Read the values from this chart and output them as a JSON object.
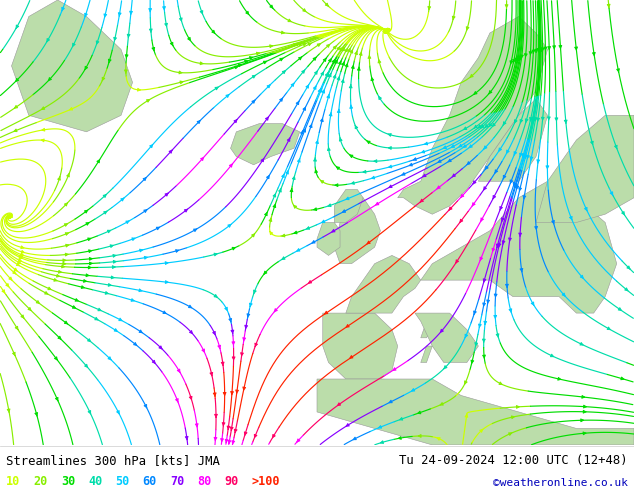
{
  "title_left": "Streamlines 300 hPa [kts] JMA",
  "title_right": "Tu 24-09-2024 12:00 UTC (12+48)",
  "watermark": "©weatheronline.co.uk",
  "legend_values": [
    "10",
    "20",
    "30",
    "40",
    "50",
    "60",
    "70",
    "80",
    "90",
    ">100"
  ],
  "legend_colors": [
    "#ccff00",
    "#88ee00",
    "#00dd00",
    "#00ddaa",
    "#00ccff",
    "#0088ff",
    "#8800ff",
    "#ff00ff",
    "#ff0066",
    "#ff2200"
  ],
  "background_color": "#ffffff",
  "sea_color": "#e8e8e8",
  "land_color": "#bbddaa",
  "coast_color": "#999999",
  "title_color": "#000000",
  "watermark_color": "#0000bb",
  "fig_width": 6.34,
  "fig_height": 4.9,
  "dpi": 100
}
